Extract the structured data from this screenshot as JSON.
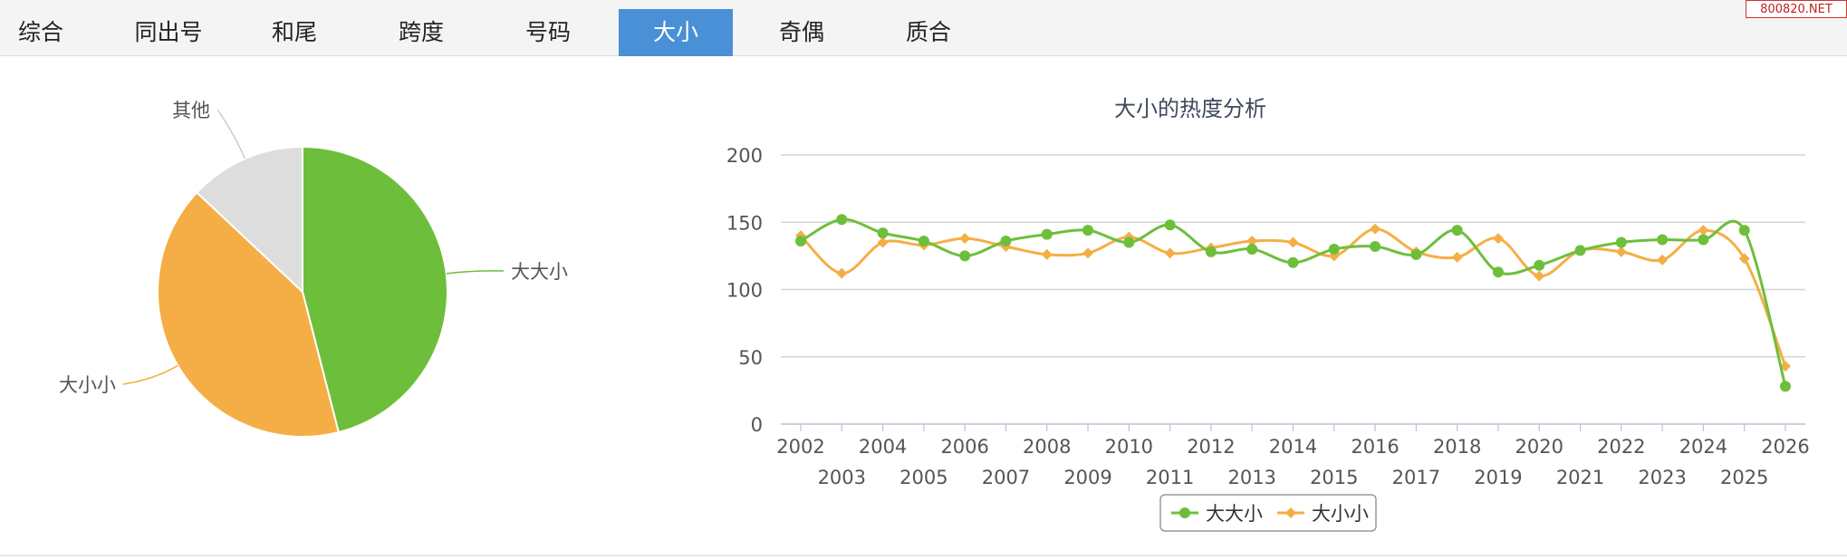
{
  "tabs": [
    {
      "label": "综合",
      "active": false
    },
    {
      "label": "同出号",
      "active": false
    },
    {
      "label": "和尾",
      "active": false
    },
    {
      "label": "跨度",
      "active": false
    },
    {
      "label": "号码",
      "active": false
    },
    {
      "label": "大小",
      "active": true
    },
    {
      "label": "奇偶",
      "active": false
    },
    {
      "label": "质合",
      "active": false
    }
  ],
  "watermark": "800820.NET",
  "colors": {
    "green": "#6dbf3b",
    "orange": "#f5ae45",
    "gray": "#dddddd",
    "active_tab": "#4a90d6"
  },
  "chart_data": [
    {
      "type": "pie",
      "slices": [
        {
          "label": "大大小",
          "value": 46,
          "color": "#6dbf3b"
        },
        {
          "label": "大小小",
          "value": 41,
          "color": "#f5ae45"
        },
        {
          "label": "其他",
          "value": 13,
          "color": "#dddddd"
        }
      ]
    },
    {
      "type": "line",
      "title": "大小的热度分析",
      "xlabel": "",
      "ylabel": "",
      "ylim": [
        0,
        200
      ],
      "yticks": [
        0,
        50,
        100,
        150,
        200
      ],
      "grid": true,
      "legend": "bottom-center",
      "x": [
        "2002",
        "2003",
        "2004",
        "2005",
        "2006",
        "2007",
        "2008",
        "2009",
        "2010",
        "2011",
        "2012",
        "2013",
        "2014",
        "2015",
        "2016",
        "2017",
        "2018",
        "2019",
        "2020",
        "2021",
        "2022",
        "2023",
        "2024",
        "2025",
        "2026"
      ],
      "series": [
        {
          "name": "大大小",
          "color": "#6dbf3b",
          "marker": "circle",
          "values": [
            136,
            152,
            142,
            136,
            125,
            136,
            141,
            144,
            135,
            148,
            128,
            130,
            120,
            130,
            132,
            126,
            144,
            113,
            118,
            129,
            135,
            137,
            137,
            144,
            28
          ]
        },
        {
          "name": "大小小",
          "color": "#f5ae45",
          "marker": "diamond",
          "values": [
            140,
            112,
            135,
            133,
            138,
            132,
            126,
            127,
            139,
            127,
            131,
            136,
            135,
            125,
            145,
            128,
            124,
            138,
            110,
            129,
            128,
            122,
            144,
            123,
            43
          ]
        }
      ]
    }
  ]
}
